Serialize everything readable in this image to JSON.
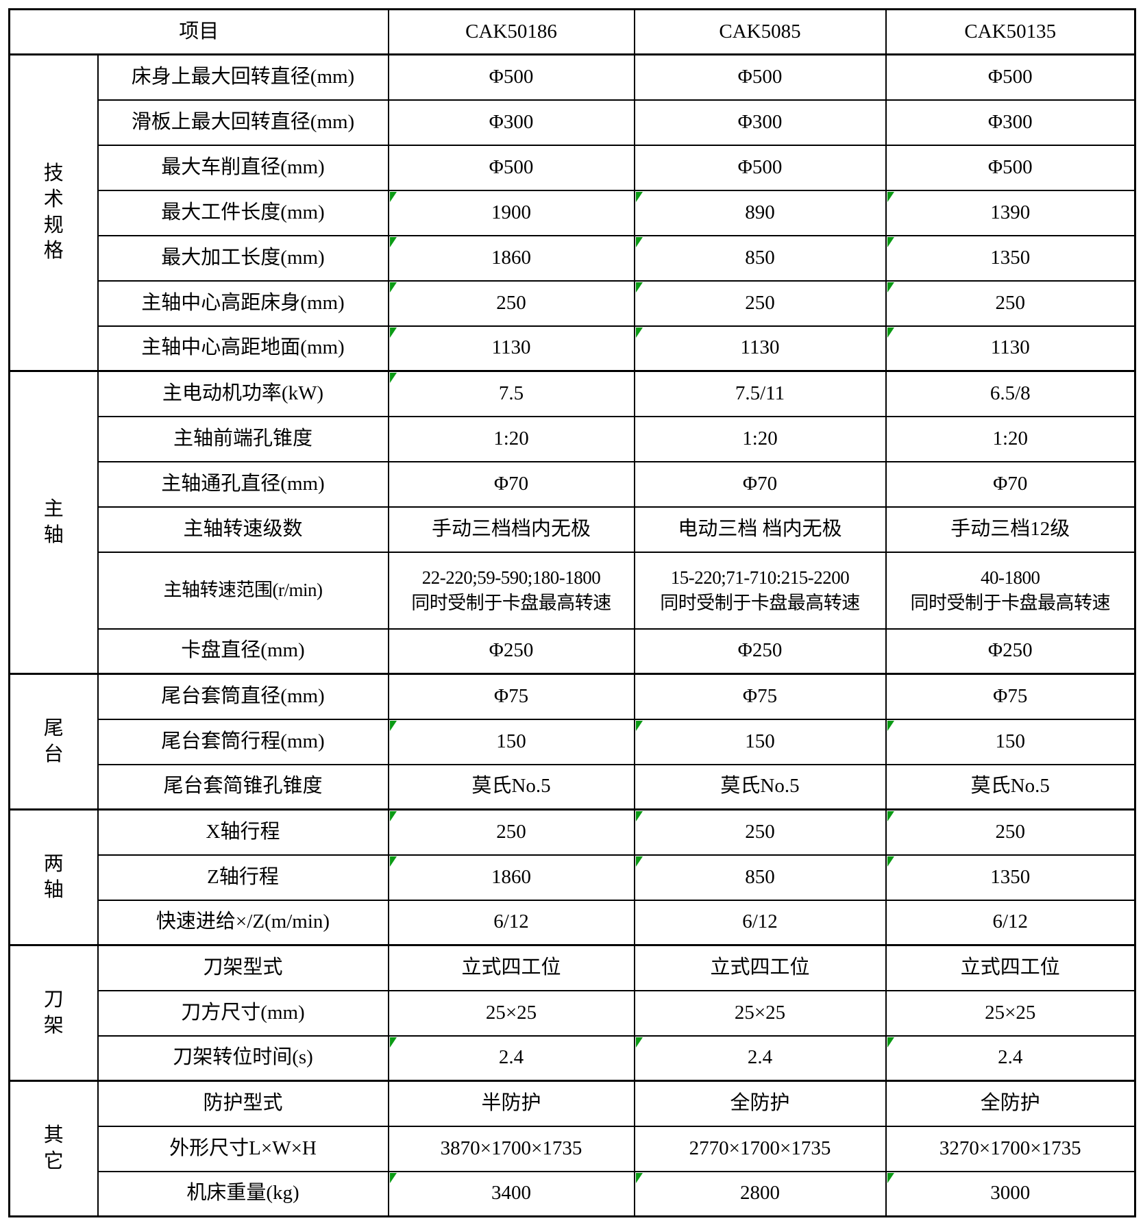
{
  "colors": {
    "line": "#000000",
    "flag_green": "#0a9a14",
    "text": "#000000",
    "background": "#ffffff"
  },
  "header": {
    "item_label": "项目",
    "models": [
      "CAK50186",
      "CAK5085",
      "CAK50135"
    ]
  },
  "sections": [
    {
      "group": "技术规格",
      "rows": [
        {
          "label": "床身上最大回转直径(mm)",
          "values": [
            "Φ500",
            "Φ500",
            "Φ500"
          ]
        },
        {
          "label": "滑板上最大回转直径(mm)",
          "values": [
            "Φ300",
            "Φ300",
            "Φ300"
          ]
        },
        {
          "label": "最大车削直径(mm)",
          "values": [
            "Φ500",
            "Φ500",
            "Φ500"
          ]
        },
        {
          "label": "最大工件长度(mm)",
          "values": [
            "1900",
            "890",
            "1390"
          ],
          "flags": [
            1,
            1,
            1
          ]
        },
        {
          "label": "最大加工长度(mm)",
          "values": [
            "1860",
            "850",
            "1350"
          ],
          "flags": [
            1,
            1,
            1
          ]
        },
        {
          "label": "主轴中心高距床身(mm)",
          "values": [
            "250",
            "250",
            "250"
          ],
          "flags": [
            1,
            1,
            1
          ]
        },
        {
          "label": "主轴中心高距地面(mm)",
          "values": [
            "1130",
            "1130",
            "1130"
          ],
          "flags": [
            1,
            1,
            1
          ]
        }
      ]
    },
    {
      "group": "主轴",
      "rows": [
        {
          "label": "主电动机功率(kW)",
          "values": [
            "7.5",
            "7.5/11",
            "6.5/8"
          ],
          "flags": [
            1,
            0,
            0
          ]
        },
        {
          "label": "主轴前端孔锥度",
          "values": [
            "1:20",
            "1:20",
            "1:20"
          ]
        },
        {
          "label": "主轴通孔直径(mm)",
          "values": [
            "Φ70",
            "Φ70",
            "Φ70"
          ]
        },
        {
          "label": "主轴转速级数",
          "values": [
            "手动三档档内无极",
            "电动三档 档内无极",
            "手动三档12级"
          ]
        },
        {
          "label": "主轴转速范围(r/min)",
          "values": [
            "22-220;59-590;180-1800\n同时受制于卡盘最高转速",
            "15-220;71-710:215-2200\n同时受制于卡盘最高转速",
            "40-1800\n同时受制于卡盘最高转速"
          ],
          "tall": true
        },
        {
          "label": "卡盘直径(mm)",
          "values": [
            "Φ250",
            "Φ250",
            "Φ250"
          ]
        }
      ]
    },
    {
      "group": "尾台",
      "rows": [
        {
          "label": "尾台套筒直径(mm)",
          "values": [
            "Φ75",
            "Φ75",
            "Φ75"
          ]
        },
        {
          "label": "尾台套筒行程(mm)",
          "values": [
            "150",
            "150",
            "150"
          ],
          "flags": [
            1,
            1,
            1
          ]
        },
        {
          "label": "尾台套简锥孔锥度",
          "values": [
            "莫氏No.5",
            "莫氏No.5",
            "莫氏No.5"
          ]
        }
      ]
    },
    {
      "group": "两轴",
      "rows": [
        {
          "label": "X轴行程",
          "values": [
            "250",
            "250",
            "250"
          ],
          "flags": [
            1,
            1,
            1
          ]
        },
        {
          "label": "Z轴行程",
          "values": [
            "1860",
            "850",
            "1350"
          ],
          "flags": [
            1,
            1,
            1
          ]
        },
        {
          "label": "快速进给×/Z(m/min)",
          "values": [
            "6/12",
            "6/12",
            "6/12"
          ]
        }
      ]
    },
    {
      "group": "刀架",
      "rows": [
        {
          "label": "刀架型式",
          "values": [
            "立式四工位",
            "立式四工位",
            "立式四工位"
          ]
        },
        {
          "label": "刀方尺寸(mm)",
          "values": [
            "25×25",
            "25×25",
            "25×25"
          ]
        },
        {
          "label": "刀架转位时间(s)",
          "values": [
            "2.4",
            "2.4",
            "2.4"
          ],
          "flags": [
            1,
            1,
            1
          ]
        }
      ]
    },
    {
      "group": "其它",
      "rows": [
        {
          "label": "防护型式",
          "values": [
            "半防护",
            "全防护",
            "全防护"
          ]
        },
        {
          "label": "外形尺寸L×W×H",
          "values": [
            "3870×1700×1735",
            "2770×1700×1735",
            "3270×1700×1735"
          ]
        },
        {
          "label": "机床重量(kg)",
          "values": [
            "3400",
            "2800",
            "3000"
          ],
          "flags": [
            1,
            1,
            1
          ]
        }
      ]
    }
  ]
}
